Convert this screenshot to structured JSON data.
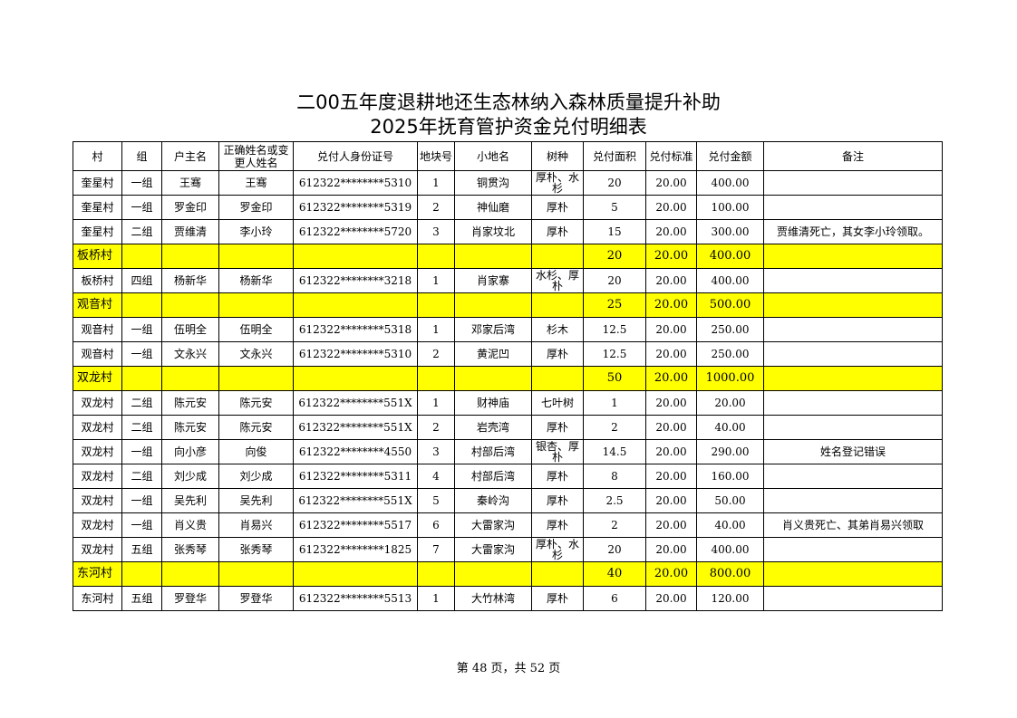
{
  "title_line1": "二00五年度退耕地还生态林纳入森林质量提升补助",
  "title_line2": "2025年抚育管护资金兑付明细表",
  "columns": [
    "村",
    "组",
    "户主名",
    "正确姓名或变更人姓名",
    "兑付人身份证号",
    "地块号",
    "小地名",
    "树种",
    "兑付面积",
    "兑付标准",
    "兑付金额",
    "备注"
  ],
  "rows": [
    {
      "type": "data",
      "cells": [
        "奎星村",
        "一组",
        "王骞",
        "王骞",
        "612322********5310",
        "1",
        "铜贯沟",
        "厚朴、水杉",
        "20",
        "20.00",
        "400.00",
        ""
      ]
    },
    {
      "type": "data",
      "cells": [
        "奎星村",
        "一组",
        "罗金印",
        "罗金印",
        "612322********5319",
        "2",
        "神仙磨",
        "厚朴",
        "5",
        "20.00",
        "100.00",
        ""
      ]
    },
    {
      "type": "data",
      "cells": [
        "奎星村",
        "二组",
        "贾维清",
        "李小玲",
        "612322********5720",
        "3",
        "肖家坟北",
        "厚朴",
        "15",
        "20.00",
        "300.00",
        "贾维清死亡，其女李小玲领取。"
      ]
    },
    {
      "type": "subtotal",
      "cells": [
        "板桥村",
        "",
        "",
        "",
        "",
        "",
        "",
        "",
        "20",
        "20.00",
        "400.00",
        ""
      ]
    },
    {
      "type": "data",
      "cells": [
        "板桥村",
        "四组",
        "杨新华",
        "杨新华",
        "612322********3218",
        "1",
        "肖家寨",
        "水杉、厚朴",
        "20",
        "20.00",
        "400.00",
        ""
      ]
    },
    {
      "type": "subtotal",
      "cells": [
        "观音村",
        "",
        "",
        "",
        "",
        "",
        "",
        "",
        "25",
        "20.00",
        "500.00",
        ""
      ]
    },
    {
      "type": "data",
      "cells": [
        "观音村",
        "一组",
        "伍明全",
        "伍明全",
        "612322********5318",
        "1",
        "邓家后湾",
        "杉木",
        "12.5",
        "20.00",
        "250.00",
        ""
      ]
    },
    {
      "type": "data",
      "cells": [
        "观音村",
        "一组",
        "文永兴",
        "文永兴",
        "612322********5310",
        "2",
        "黄泥凹",
        "厚朴",
        "12.5",
        "20.00",
        "250.00",
        ""
      ]
    },
    {
      "type": "subtotal",
      "cells": [
        "双龙村",
        "",
        "",
        "",
        "",
        "",
        "",
        "",
        "50",
        "20.00",
        "1000.00",
        ""
      ]
    },
    {
      "type": "data",
      "cells": [
        "双龙村",
        "二组",
        "陈元安",
        "陈元安",
        "612322********551X",
        "1",
        "财神庙",
        "七叶树",
        "1",
        "20.00",
        "20.00",
        ""
      ]
    },
    {
      "type": "data",
      "cells": [
        "双龙村",
        "二组",
        "陈元安",
        "陈元安",
        "612322********551X",
        "2",
        "岩壳湾",
        "厚朴",
        "2",
        "20.00",
        "40.00",
        ""
      ]
    },
    {
      "type": "data",
      "cells": [
        "双龙村",
        "一组",
        "向小彦",
        "向俊",
        "612322********4550",
        "3",
        "村部后湾",
        "银杏、厚朴",
        "14.5",
        "20.00",
        "290.00",
        "姓名登记错误"
      ]
    },
    {
      "type": "data",
      "cells": [
        "双龙村",
        "二组",
        "刘少成",
        "刘少成",
        "612322********5311",
        "4",
        "村部后湾",
        "厚朴",
        "8",
        "20.00",
        "160.00",
        ""
      ]
    },
    {
      "type": "data",
      "cells": [
        "双龙村",
        "一组",
        "吴先利",
        "吴先利",
        "612322********551X",
        "5",
        "秦岭沟",
        "厚朴",
        "2.5",
        "20.00",
        "50.00",
        ""
      ]
    },
    {
      "type": "data",
      "cells": [
        "双龙村",
        "一组",
        "肖义贵",
        "肖易兴",
        "612322********5517",
        "6",
        "大雷家沟",
        "厚朴",
        "2",
        "20.00",
        "40.00",
        "肖义贵死亡、其弟肖易兴领取"
      ]
    },
    {
      "type": "data",
      "cells": [
        "双龙村",
        "五组",
        "张秀琴",
        "张秀琴",
        "612322********1825",
        "7",
        "大雷家沟",
        "厚朴、水杉",
        "20",
        "20.00",
        "400.00",
        ""
      ]
    },
    {
      "type": "subtotal",
      "cells": [
        "东河村",
        "",
        "",
        "",
        "",
        "",
        "",
        "",
        "40",
        "20.00",
        "800.00",
        ""
      ]
    },
    {
      "type": "data",
      "cells": [
        "东河村",
        "五组",
        "罗登华",
        "罗登华",
        "612322********5513",
        "1",
        "大竹林湾",
        "厚朴",
        "6",
        "20.00",
        "120.00",
        ""
      ]
    }
  ],
  "highlight_color": "#ffff00",
  "footer": "第 48 页，共 52 页"
}
